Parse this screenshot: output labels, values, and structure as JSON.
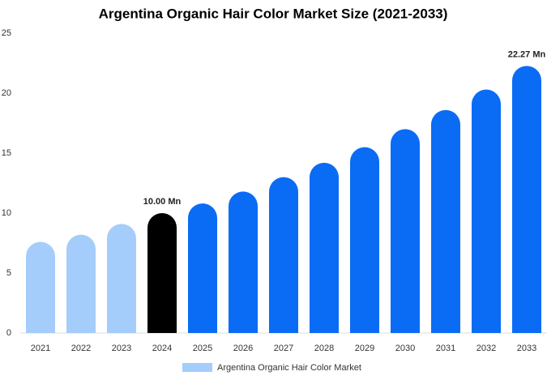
{
  "chart_data": {
    "type": "bar",
    "title": "Argentina Organic Hair Color Market Size (2021-2033)",
    "categories": [
      "2021",
      "2022",
      "2023",
      "2024",
      "2025",
      "2026",
      "2027",
      "2028",
      "2029",
      "2030",
      "2031",
      "2032",
      "2033"
    ],
    "series": [
      {
        "name": "Argentina Organic Hair Color Market",
        "color": "#a5cdfb",
        "values": [
          7.6,
          8.2,
          9.1,
          10.0,
          10.8,
          11.8,
          13.0,
          14.2,
          15.5,
          17.0,
          18.6,
          20.3,
          22.27
        ],
        "colors": [
          "#a5cdfb",
          "#a5cdfb",
          "#a5cdfb",
          "#000000",
          "#0a6cf5",
          "#0a6cf5",
          "#0a6cf5",
          "#0a6cf5",
          "#0a6cf5",
          "#0a6cf5",
          "#0a6cf5",
          "#0a6cf5",
          "#0a6cf5"
        ],
        "value_labels": [
          null,
          null,
          null,
          "10.00 Mn",
          null,
          null,
          null,
          null,
          null,
          null,
          null,
          null,
          "22.27 Mn"
        ]
      }
    ],
    "ylim": [
      0,
      25
    ],
    "yticks": [
      0,
      5,
      10,
      15,
      20,
      25
    ],
    "grid": false,
    "legend": "bottom"
  }
}
